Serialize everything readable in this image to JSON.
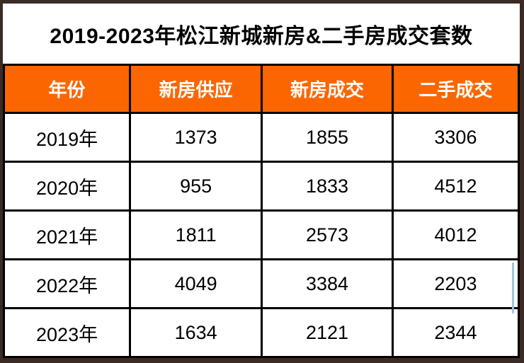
{
  "title": "2019-2023年松江新城新房&二手房成交套数",
  "table": {
    "headers": [
      "年份",
      "新房供应",
      "新房成交",
      "二手成交"
    ],
    "rows": [
      {
        "year": "2019年",
        "values": [
          "1373",
          "1855",
          "3306"
        ]
      },
      {
        "year": "2020年",
        "values": [
          "955",
          "1833",
          "4512"
        ]
      },
      {
        "year": "2021年",
        "values": [
          "1811",
          "2573",
          "4012"
        ]
      },
      {
        "year": "2022年",
        "values": [
          "4049",
          "3384",
          "2203"
        ]
      },
      {
        "year": "2023年",
        "values": [
          "1634",
          "2121",
          "2344"
        ]
      }
    ]
  },
  "colors": {
    "header_bg": "#FC6600",
    "header_text": "#FFFFFF",
    "grid": "#000000",
    "frame": "#3B2B24",
    "title_text": "#000000",
    "cell_text": "#000000",
    "selection_artifact": "#9DC3E6"
  },
  "chart_data": {
    "type": "table",
    "title": "2019-2023年松江新城新房&二手房成交套数",
    "columns": [
      "年份",
      "新房供应",
      "新房成交",
      "二手成交"
    ],
    "rows": [
      [
        "2019年",
        1373,
        1855,
        3306
      ],
      [
        "2020年",
        955,
        1833,
        4512
      ],
      [
        "2021年",
        1811,
        2573,
        4012
      ],
      [
        "2022年",
        4049,
        3384,
        2203
      ],
      [
        "2023年",
        1634,
        2121,
        2344
      ]
    ]
  }
}
